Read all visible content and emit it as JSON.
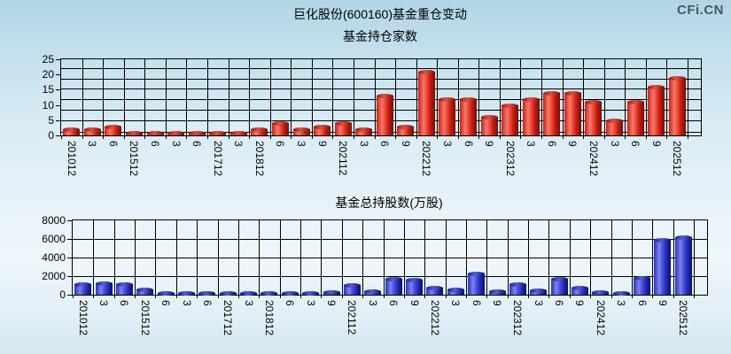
{
  "watermark": "CFi.CN",
  "header": {
    "title": "巨化股份(600160)基金重仓变动"
  },
  "chart_data": [
    {
      "type": "bar",
      "name": "fund-holders-count",
      "title": "基金持仓家数",
      "categories": [
        "201012",
        "3",
        "6",
        "201512",
        "6",
        "3",
        "6",
        "201712",
        "3",
        "201812",
        "6",
        "3",
        "9",
        "202112",
        "3",
        "6",
        "9",
        "202212",
        "3",
        "6",
        "9",
        "202312",
        "3",
        "6",
        "9",
        "202412",
        "3",
        "6",
        "9",
        "202512"
      ],
      "values": [
        2,
        2,
        3,
        1,
        1,
        1,
        1,
        1,
        1,
        2,
        4,
        2,
        3,
        4,
        2,
        13,
        3,
        21,
        12,
        12,
        6,
        10,
        12,
        14,
        14,
        11,
        5,
        11,
        16,
        19
      ],
      "ylim": [
        0,
        25
      ],
      "yticks": [
        "25",
        "20",
        "15",
        "10",
        "5",
        "0"
      ],
      "bar_color": "#e03222",
      "grid": true,
      "legend": "none"
    },
    {
      "type": "bar",
      "name": "fund-total-shares",
      "title": "基金总持股数(万股)",
      "categories": [
        "201012",
        "3",
        "6",
        "201512",
        "6",
        "3",
        "6",
        "201712",
        "3",
        "201812",
        "6",
        "3",
        "9",
        "202112",
        "3",
        "6",
        "9",
        "202212",
        "3",
        "6",
        "9",
        "202312",
        "3",
        "6",
        "9",
        "202412",
        "3",
        "6",
        "9",
        "202512"
      ],
      "values": [
        1100,
        1200,
        1100,
        550,
        100,
        100,
        100,
        100,
        100,
        100,
        150,
        100,
        300,
        1000,
        400,
        1700,
        1600,
        800,
        600,
        2300,
        400,
        1100,
        500,
        1700,
        800,
        300,
        100,
        1800,
        5900,
        6200
      ],
      "ylim": [
        0,
        8000
      ],
      "yticks": [
        "8000",
        "6000",
        "4000",
        "2000",
        "0"
      ],
      "bar_color": "#3a44d0",
      "grid": true,
      "legend": "none"
    }
  ]
}
